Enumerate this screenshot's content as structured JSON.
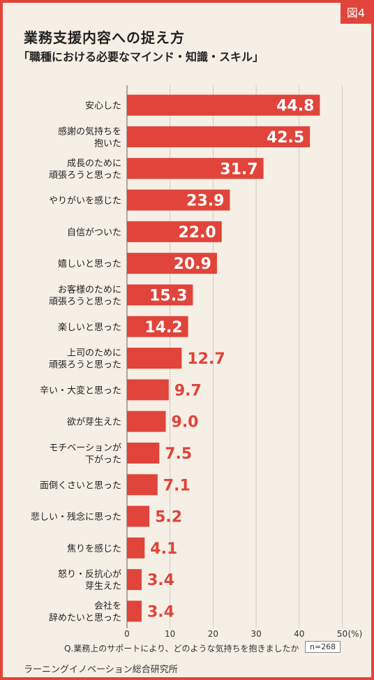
{
  "badge": "図4",
  "title": "業務支援内容への捉え方",
  "subtitle": "「職種における必要なマインド・知識・スキル」",
  "footnote": "Q.業務上のサポートにより、どのような気持ちを抱きましたか",
  "n_label": "n=268",
  "source": "ラーニングイノベーション総合研究所",
  "colors": {
    "bar": "#e0443a",
    "frame": "#e0443a",
    "background": "#f6efe6"
  },
  "chart_data": {
    "type": "bar",
    "orientation": "horizontal",
    "categories": [
      "安心した",
      "感謝の気持ちを\n抱いた",
      "成長のために\n頑張ろうと思った",
      "やりがいを感じた",
      "自信がついた",
      "嬉しいと思った",
      "お客様のために\n頑張ろうと思った",
      "楽しいと思った",
      "上司のために\n頑張ろうと思った",
      "辛い・大変と思った",
      "欲が芽生えた",
      "モチベーションが\n下がった",
      "面倒くさいと思った",
      "悲しい・残念に思った",
      "焦りを感じた",
      "怒り・反抗心が\n芽生えた",
      "会社を\n辞めたいと思った"
    ],
    "values": [
      44.8,
      42.5,
      31.7,
      23.9,
      22.0,
      20.9,
      15.3,
      14.2,
      12.7,
      9.7,
      9.0,
      7.5,
      7.1,
      5.2,
      4.1,
      3.4,
      3.4
    ],
    "value_labels": [
      "44.8",
      "42.5",
      "31.7",
      "23.9",
      "22.0",
      "20.9",
      "15.3",
      "14.2",
      "12.7",
      "9.7",
      "9.0",
      "7.5",
      "7.1",
      "5.2",
      "4.1",
      "3.4",
      "3.4"
    ],
    "xlim": [
      0,
      50
    ],
    "xticks": [
      "0",
      "10",
      "20",
      "30",
      "40",
      "50"
    ],
    "x_unit": "(%)",
    "grid": true
  }
}
